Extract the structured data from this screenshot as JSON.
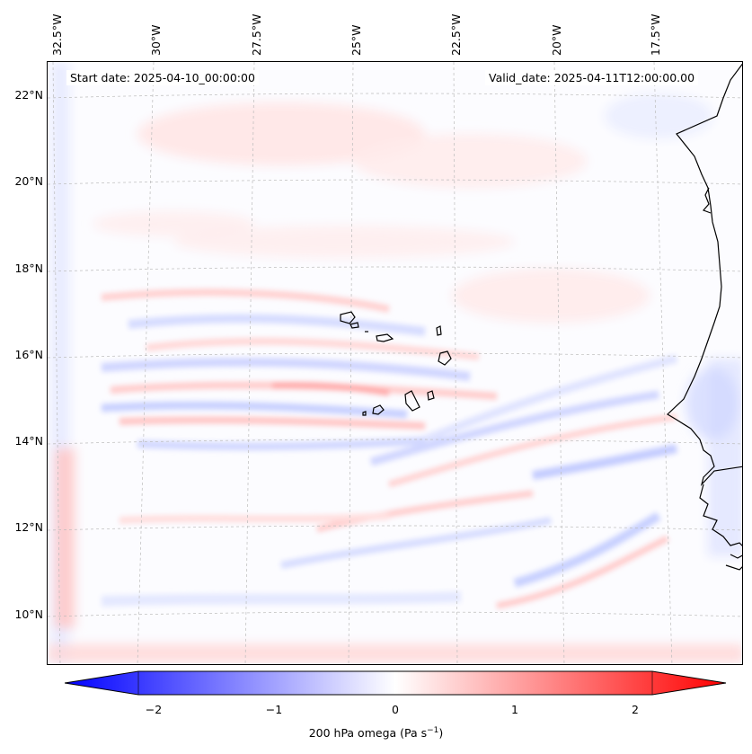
{
  "header": {
    "start_date": "Start date: 2025-04-10_00:00:00",
    "valid_date": "Valid_date: 2025-04-11T12:00:00.00"
  },
  "longitude_labels": [
    "32.5°W",
    "30°W",
    "27.5°W",
    "25°W",
    "22.5°W",
    "20°W",
    "17.5°W"
  ],
  "latitude_labels": [
    "22°N",
    "20°N",
    "18°N",
    "16°N",
    "14°N",
    "12°N",
    "10°N"
  ],
  "colorbar": {
    "label_prefix": "200 hPa omega (Pa s",
    "label_exp": "−1",
    "label_suffix": ")",
    "ticks": [
      "−2",
      "−1",
      "0",
      "1",
      "2"
    ],
    "min": -2.6,
    "max": 2.6,
    "colors": {
      "negative": "#0000ff",
      "zero": "#ffffff",
      "positive": "#ff0000"
    }
  },
  "colors": {
    "coastline": "#000000",
    "gridline": "#bbbbbb",
    "background": "#fcfcff"
  }
}
